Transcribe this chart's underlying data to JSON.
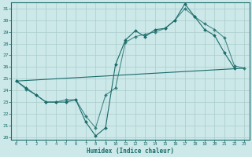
{
  "title": "",
  "xlabel": "Humidex (Indice chaleur)",
  "background_color": "#cce8e8",
  "grid_color": "#aacccc",
  "line_color": "#1a6b6b",
  "xlim": [
    -0.5,
    23.5
  ],
  "ylim": [
    19.8,
    31.5
  ],
  "yticks": [
    20,
    21,
    22,
    23,
    24,
    25,
    26,
    27,
    28,
    29,
    30,
    31
  ],
  "xticks": [
    0,
    1,
    2,
    3,
    4,
    5,
    6,
    7,
    8,
    9,
    10,
    11,
    12,
    13,
    14,
    15,
    16,
    17,
    18,
    19,
    20,
    21,
    22,
    23
  ],
  "line1_x": [
    0,
    1,
    2,
    3,
    4,
    5,
    6,
    7,
    8,
    9,
    10,
    11,
    12,
    13,
    14,
    15,
    16,
    17,
    18,
    19,
    20,
    21,
    22
  ],
  "line1_y": [
    24.8,
    24.2,
    23.6,
    23.0,
    23.0,
    23.0,
    23.2,
    21.3,
    20.1,
    20.8,
    26.2,
    28.3,
    29.1,
    28.6,
    29.2,
    29.3,
    30.0,
    31.4,
    30.3,
    29.2,
    28.7,
    27.2,
    25.9
  ],
  "line2_x": [
    0,
    1,
    2,
    3,
    4,
    5,
    6,
    7,
    8,
    9,
    10,
    11,
    12,
    13,
    14,
    15,
    16,
    17,
    18,
    19,
    20,
    21,
    22,
    23
  ],
  "line2_y": [
    24.8,
    24.1,
    23.6,
    23.0,
    23.0,
    23.2,
    23.2,
    21.8,
    20.8,
    23.6,
    24.2,
    28.1,
    28.6,
    28.8,
    29.0,
    29.3,
    30.0,
    31.0,
    30.3,
    29.7,
    29.2,
    28.5,
    26.1,
    25.9
  ],
  "line3_x": [
    0,
    23
  ],
  "line3_y": [
    24.8,
    25.9
  ]
}
